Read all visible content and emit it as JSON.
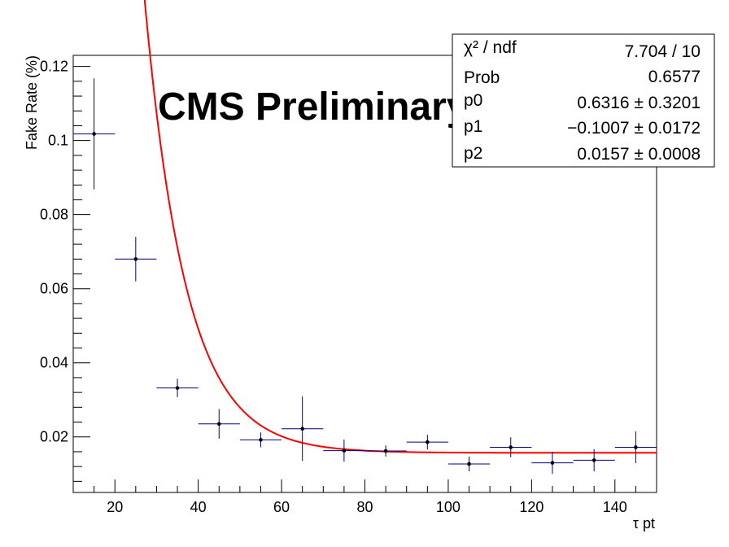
{
  "chart_data": {
    "type": "scatter",
    "xlabel": "τ pt",
    "ylabel": "Fake Rate (%)",
    "xlim": [
      10,
      150
    ],
    "ylim": [
      0.005,
      0.123
    ],
    "x_ticks": [
      20,
      40,
      60,
      80,
      100,
      120,
      140
    ],
    "y_ticks": [
      0.02,
      0.04,
      0.06,
      0.08,
      0.1,
      0.12
    ],
    "x_tick_labels": [
      "20",
      "40",
      "60",
      "80",
      "100",
      "120",
      "140"
    ],
    "y_tick_labels": [
      "0.02",
      "0.04",
      "0.06",
      "0.08",
      "0.1",
      "0.12"
    ],
    "grid": false,
    "marker_color": "#000000",
    "errorbar_color": "#000080",
    "fit_color": "#ff0000",
    "points": [
      {
        "x": 15,
        "y": 0.1018,
        "xerr": 5,
        "yerr": 0.015
      },
      {
        "x": 25,
        "y": 0.068,
        "xerr": 5,
        "yerr": 0.006
      },
      {
        "x": 35,
        "y": 0.0332,
        "xerr": 5,
        "yerr": 0.0025
      },
      {
        "x": 45,
        "y": 0.0235,
        "xerr": 5,
        "yerr": 0.004
      },
      {
        "x": 55,
        "y": 0.0192,
        "xerr": 5,
        "yerr": 0.002
      },
      {
        "x": 65,
        "y": 0.0222,
        "xerr": 5,
        "yerr": 0.0087
      },
      {
        "x": 75,
        "y": 0.0163,
        "xerr": 5,
        "yerr": 0.003
      },
      {
        "x": 85,
        "y": 0.0162,
        "xerr": 5,
        "yerr": 0.0015
      },
      {
        "x": 95,
        "y": 0.0186,
        "xerr": 5,
        "yerr": 0.002
      },
      {
        "x": 105,
        "y": 0.0127,
        "xerr": 5,
        "yerr": 0.002
      },
      {
        "x": 115,
        "y": 0.0172,
        "xerr": 5,
        "yerr": 0.0027
      },
      {
        "x": 125,
        "y": 0.013,
        "xerr": 5,
        "yerr": 0.003
      },
      {
        "x": 135,
        "y": 0.0137,
        "xerr": 5,
        "yerr": 0.003
      },
      {
        "x": 145,
        "y": 0.0172,
        "xerr": 5,
        "yerr": 0.0043
      }
    ],
    "fit": {
      "function": "exp(p0 + p1*x) + p2",
      "x_range": [
        20.5,
        150
      ],
      "p0": 0.6316,
      "p1": -0.1007,
      "p2": 0.0157
    }
  },
  "watermark": "CMS Preliminary",
  "stats_box": {
    "rows": [
      {
        "label": "χ² / ndf",
        "value": "7.704 / 10"
      },
      {
        "label": "Prob",
        "value": "0.6577"
      },
      {
        "label": "p0",
        "value": "0.6316 ± 0.3201"
      },
      {
        "label": "p1",
        "value": "−0.1007 ± 0.0172"
      },
      {
        "label": "p2",
        "value": "0.0157 ± 0.0008"
      }
    ]
  }
}
